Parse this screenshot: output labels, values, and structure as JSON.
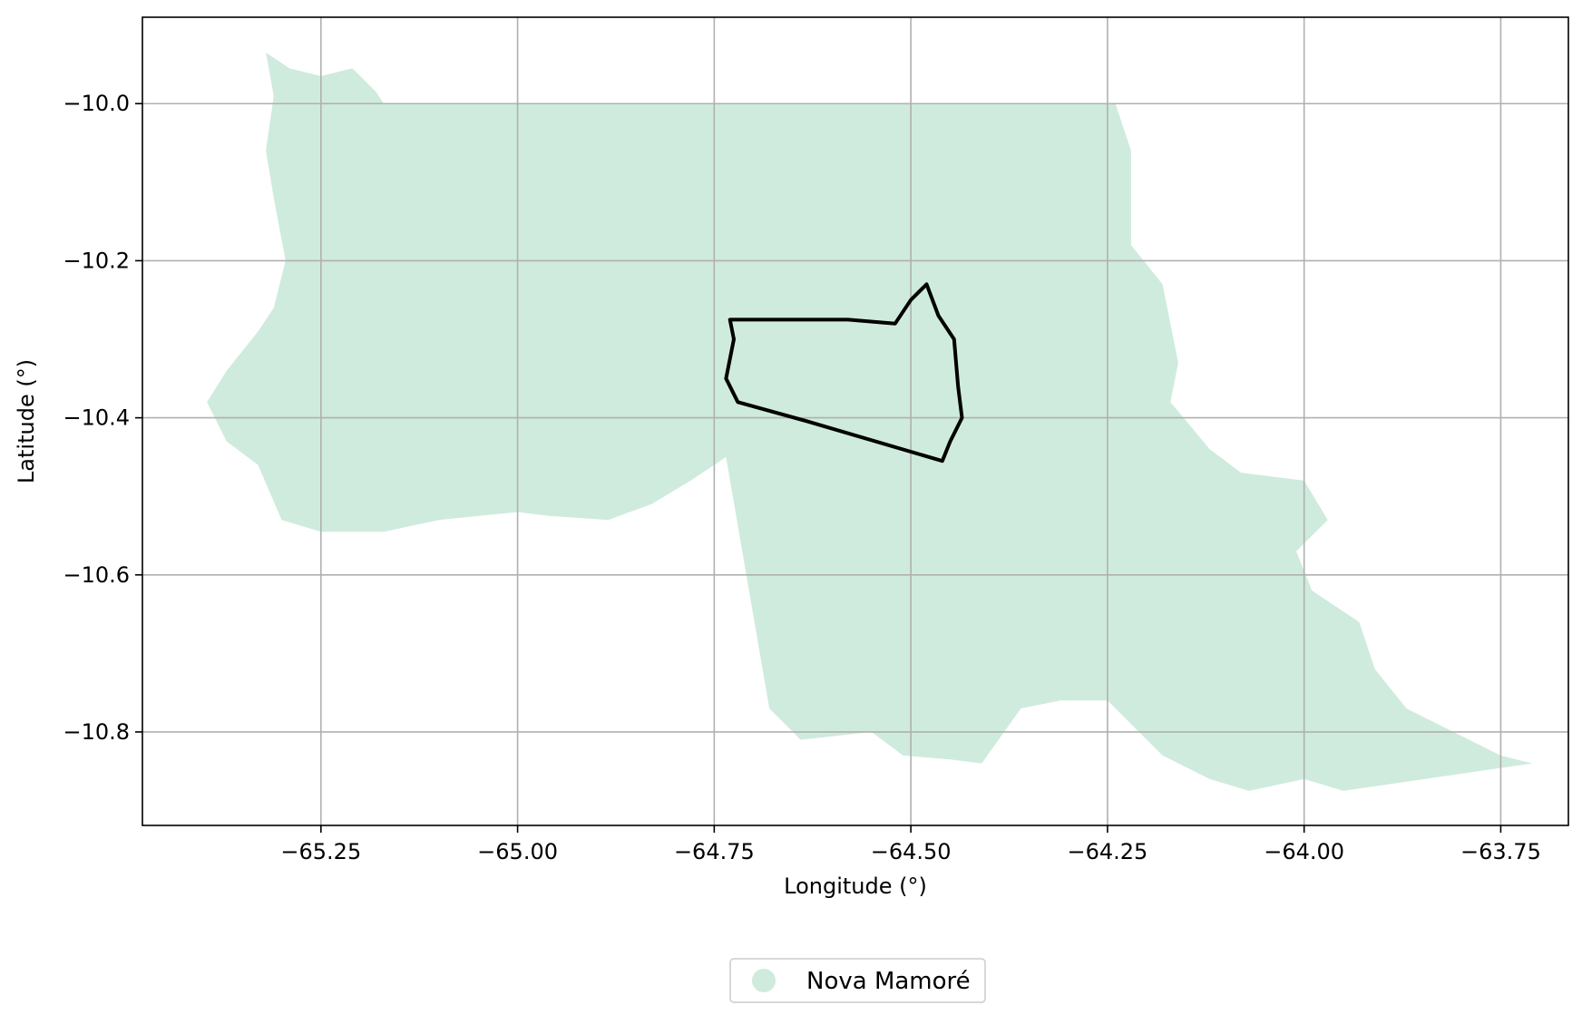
{
  "chart_data": {
    "type": "map",
    "title": "",
    "xlabel": "Longitude (°)",
    "ylabel": "Latitude (°)",
    "xlim": [
      -65.477,
      -63.664
    ],
    "ylim": [
      -10.919,
      -9.89
    ],
    "grid": true,
    "legend_placement": "bottom-center",
    "x_ticks": [
      {
        "value": -65.25,
        "label": "−65.25"
      },
      {
        "value": -65.0,
        "label": "−65.00"
      },
      {
        "value": -64.75,
        "label": "−64.75"
      },
      {
        "value": -64.5,
        "label": "−64.50"
      },
      {
        "value": -64.25,
        "label": "−64.25"
      },
      {
        "value": -64.0,
        "label": "−64.00"
      },
      {
        "value": -63.75,
        "label": "−63.75"
      }
    ],
    "y_ticks": [
      {
        "value": -10.0,
        "label": "−10.0"
      },
      {
        "value": -10.2,
        "label": "−10.2"
      },
      {
        "value": -10.4,
        "label": "−10.4"
      },
      {
        "value": -10.6,
        "label": "−10.6"
      },
      {
        "value": -10.8,
        "label": "−10.8"
      }
    ],
    "legend": [
      {
        "label": "Nova Mamoré",
        "color": "#cfebdd"
      }
    ],
    "region_fill_color": "#cfebdd",
    "outline_color": "#000000",
    "grid_color": "#b0b0b0",
    "region_polygon": [
      [
        -65.32,
        -9.935
      ],
      [
        -65.29,
        -9.955
      ],
      [
        -65.25,
        -9.965
      ],
      [
        -65.21,
        -9.955
      ],
      [
        -65.18,
        -9.985
      ],
      [
        -65.17,
        -10.0
      ],
      [
        -64.24,
        -10.0
      ],
      [
        -64.22,
        -10.06
      ],
      [
        -64.22,
        -10.18
      ],
      [
        -64.18,
        -10.23
      ],
      [
        -64.16,
        -10.33
      ],
      [
        -64.17,
        -10.38
      ],
      [
        -64.12,
        -10.44
      ],
      [
        -64.08,
        -10.47
      ],
      [
        -64.0,
        -10.48
      ],
      [
        -63.97,
        -10.53
      ],
      [
        -64.01,
        -10.57
      ],
      [
        -63.99,
        -10.62
      ],
      [
        -63.93,
        -10.66
      ],
      [
        -63.91,
        -10.72
      ],
      [
        -63.87,
        -10.77
      ],
      [
        -63.79,
        -10.81
      ],
      [
        -63.75,
        -10.83
      ],
      [
        -63.71,
        -10.84
      ],
      [
        -63.95,
        -10.875
      ],
      [
        -64.0,
        -10.86
      ],
      [
        -64.07,
        -10.875
      ],
      [
        -64.12,
        -10.86
      ],
      [
        -64.18,
        -10.83
      ],
      [
        -64.25,
        -10.76
      ],
      [
        -64.31,
        -10.76
      ],
      [
        -64.36,
        -10.77
      ],
      [
        -64.41,
        -10.84
      ],
      [
        -64.45,
        -10.835
      ],
      [
        -64.51,
        -10.83
      ],
      [
        -64.55,
        -10.8
      ],
      [
        -64.64,
        -10.81
      ],
      [
        -64.68,
        -10.77
      ],
      [
        -64.735,
        -10.45
      ],
      [
        -64.78,
        -10.48
      ],
      [
        -64.83,
        -10.51
      ],
      [
        -64.885,
        -10.53
      ],
      [
        -64.96,
        -10.525
      ],
      [
        -65.0,
        -10.52
      ],
      [
        -65.1,
        -10.53
      ],
      [
        -65.17,
        -10.545
      ],
      [
        -65.25,
        -10.545
      ],
      [
        -65.3,
        -10.53
      ],
      [
        -65.33,
        -10.46
      ],
      [
        -65.37,
        -10.43
      ],
      [
        -65.395,
        -10.38
      ],
      [
        -65.37,
        -10.34
      ],
      [
        -65.33,
        -10.29
      ],
      [
        -65.31,
        -10.26
      ],
      [
        -65.295,
        -10.2
      ],
      [
        -65.31,
        -10.12
      ],
      [
        -65.32,
        -10.06
      ],
      [
        -65.31,
        -9.99
      ]
    ],
    "outline_polygon": [
      [
        -64.73,
        -10.275
      ],
      [
        -64.58,
        -10.275
      ],
      [
        -64.52,
        -10.28
      ],
      [
        -64.5,
        -10.25
      ],
      [
        -64.48,
        -10.23
      ],
      [
        -64.465,
        -10.27
      ],
      [
        -64.445,
        -10.3
      ],
      [
        -64.44,
        -10.36
      ],
      [
        -64.435,
        -10.4
      ],
      [
        -64.45,
        -10.43
      ],
      [
        -64.46,
        -10.455
      ],
      [
        -64.63,
        -10.405
      ],
      [
        -64.72,
        -10.38
      ],
      [
        -64.735,
        -10.35
      ],
      [
        -64.725,
        -10.3
      ]
    ]
  }
}
